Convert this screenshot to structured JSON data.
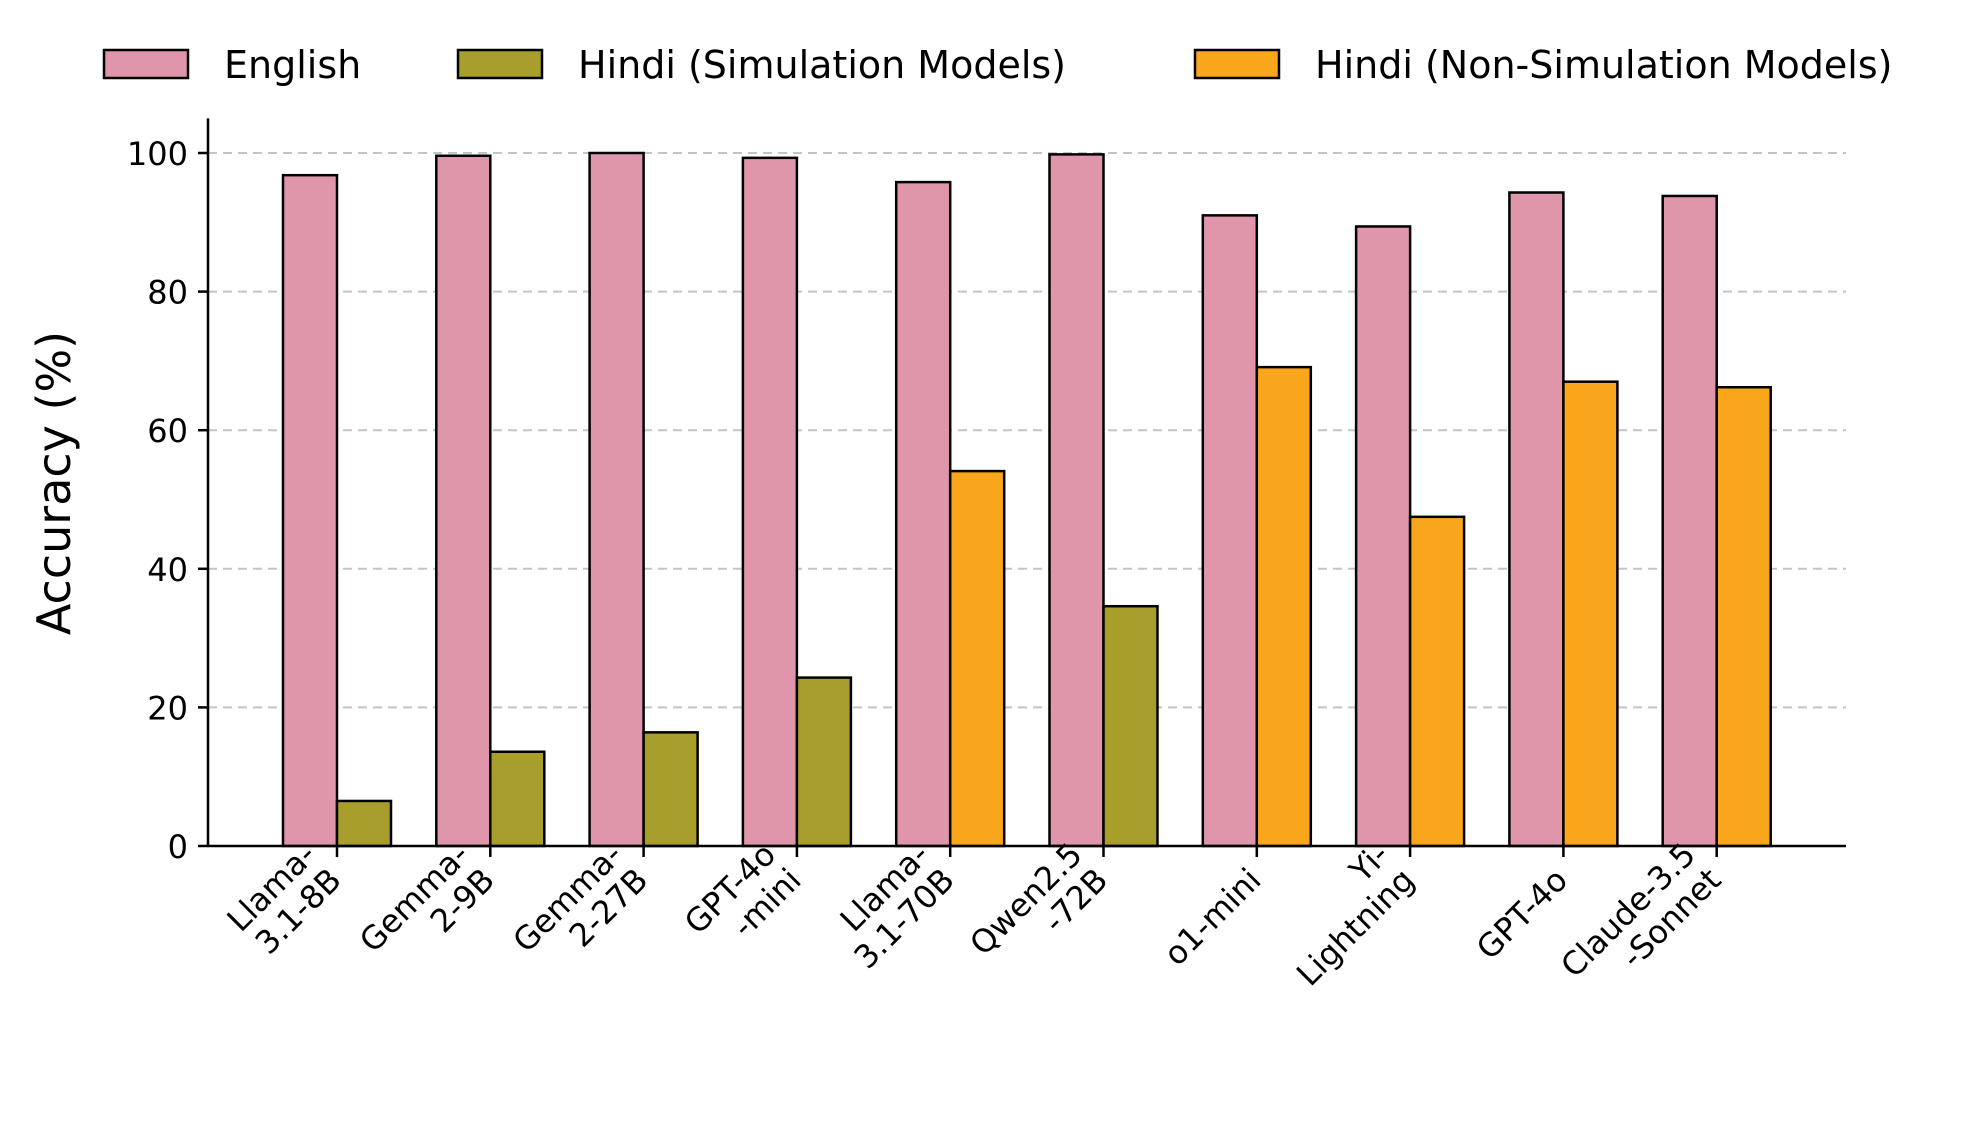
{
  "chart_data": {
    "type": "bar",
    "title": "",
    "xlabel": "",
    "ylabel": "Accuracy (%)",
    "ylim": [
      0,
      105
    ],
    "yticks": [
      0,
      20,
      40,
      60,
      80,
      100
    ],
    "grid": "y-dashed",
    "legend_position": "top",
    "categories": [
      [
        "Llama-",
        "3.1-8B"
      ],
      [
        "Gemma-",
        "2-9B"
      ],
      [
        "Gemma-",
        "2-27B"
      ],
      [
        "GPT-4o",
        "-mini"
      ],
      [
        "Llama-",
        "3.1-70B"
      ],
      [
        "Qwen2.5",
        "-72B"
      ],
      [
        "o1-mini"
      ],
      [
        "Yi-",
        "Lightning"
      ],
      [
        "GPT-4o"
      ],
      [
        "Claude-3.5",
        "-Sonnet"
      ]
    ],
    "legend": [
      {
        "name": "English",
        "color": "#e096aa"
      },
      {
        "name": "Hindi (Simulation Models)",
        "color": "#a89e2c"
      },
      {
        "name": "Hindi (Non-Simulation Models)",
        "color": "#f9a61c"
      }
    ],
    "series": [
      {
        "name": "English",
        "values": [
          96.8,
          99.6,
          100.0,
          99.3,
          95.8,
          99.8,
          91.0,
          89.4,
          94.3,
          93.8
        ]
      },
      {
        "name": "Hindi",
        "values": [
          6.5,
          13.6,
          16.4,
          24.3,
          54.1,
          34.6,
          69.1,
          47.5,
          67.0,
          66.2
        ],
        "simulation_flags": [
          true,
          true,
          true,
          true,
          false,
          true,
          false,
          false,
          false,
          false
        ]
      }
    ]
  }
}
